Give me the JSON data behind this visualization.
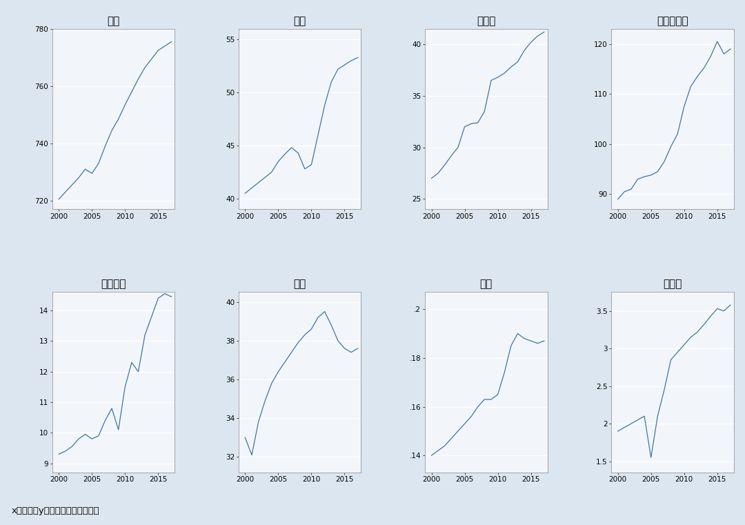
{
  "subplots": [
    {
      "title": "中国",
      "yticks": [
        720,
        740,
        760,
        780
      ],
      "ylim": [
        717,
        779
      ],
      "ytick_labels": [
        "720",
        "740",
        "760",
        "780"
      ],
      "data_x": [
        2000,
        2001,
        2002,
        2003,
        2004,
        2005,
        2006,
        2007,
        2008,
        2009,
        2010,
        2011,
        2012,
        2013,
        2014,
        2015,
        2016,
        2017
      ],
      "data_y": [
        720.5,
        723.0,
        725.5,
        728.0,
        731.0,
        729.5,
        733.0,
        739.0,
        744.5,
        748.5,
        753.5,
        758.0,
        762.5,
        766.5,
        769.5,
        772.5,
        774.0,
        775.5
      ]
    },
    {
      "title": "越南",
      "yticks": [
        40,
        45,
        50,
        55
      ],
      "ylim": [
        39.0,
        56.0
      ],
      "ytick_labels": [
        "40",
        "45",
        "50",
        "55"
      ],
      "data_x": [
        2000,
        2001,
        2002,
        2003,
        2004,
        2005,
        2006,
        2007,
        2008,
        2009,
        2010,
        2011,
        2012,
        2013,
        2014,
        2015,
        2016,
        2017
      ],
      "data_y": [
        40.5,
        41.0,
        41.5,
        42.0,
        42.5,
        43.5,
        44.2,
        44.8,
        44.3,
        42.8,
        43.2,
        46.0,
        48.8,
        51.0,
        52.2,
        52.6,
        53.0,
        53.3
      ]
    },
    {
      "title": "菲律宾",
      "yticks": [
        25,
        30,
        35,
        40
      ],
      "ylim": [
        24.0,
        41.5
      ],
      "ytick_labels": [
        "25",
        "30",
        "35",
        "40"
      ],
      "data_x": [
        2000,
        2001,
        2002,
        2003,
        2004,
        2005,
        2006,
        2007,
        2008,
        2009,
        2010,
        2011,
        2012,
        2013,
        2014,
        2015,
        2016,
        2017
      ],
      "data_y": [
        27.0,
        27.5,
        28.3,
        29.2,
        30.0,
        32.0,
        32.3,
        32.4,
        33.5,
        36.5,
        36.8,
        37.2,
        37.8,
        38.3,
        39.4,
        40.2,
        40.8,
        41.2
      ]
    },
    {
      "title": "印度尼西亚",
      "yticks": [
        90,
        100,
        110,
        120
      ],
      "ylim": [
        87,
        123
      ],
      "ytick_labels": [
        "90",
        "100",
        "110",
        "120"
      ],
      "data_x": [
        2000,
        2001,
        2002,
        2003,
        2004,
        2005,
        2006,
        2007,
        2008,
        2009,
        2010,
        2011,
        2012,
        2013,
        2014,
        2015,
        2016,
        2017
      ],
      "data_y": [
        89.0,
        90.5,
        91.0,
        93.0,
        93.5,
        93.8,
        94.5,
        96.5,
        99.5,
        102.0,
        107.5,
        111.5,
        113.5,
        115.2,
        117.5,
        120.5,
        118.0,
        119.0
      ]
    },
    {
      "title": "马来西亚",
      "yticks": [
        9,
        10,
        11,
        12,
        13,
        14
      ],
      "ylim": [
        8.7,
        14.6
      ],
      "ytick_labels": [
        "9",
        "10",
        "11",
        "12",
        "13",
        "14"
      ],
      "data_x": [
        2000,
        2001,
        2002,
        2003,
        2004,
        2005,
        2006,
        2007,
        2008,
        2009,
        2010,
        2011,
        2012,
        2013,
        2014,
        2015,
        2016,
        2017
      ],
      "data_y": [
        9.3,
        9.4,
        9.55,
        9.8,
        9.95,
        9.8,
        9.9,
        10.4,
        10.8,
        10.1,
        11.5,
        12.3,
        12.0,
        13.2,
        13.8,
        14.4,
        14.55,
        14.45
      ]
    },
    {
      "title": "泰国",
      "yticks": [
        32,
        34,
        36,
        38,
        40
      ],
      "ylim": [
        31.2,
        40.5
      ],
      "ytick_labels": [
        "32",
        "34",
        "36",
        "38",
        "40"
      ],
      "data_x": [
        2000,
        2001,
        2002,
        2003,
        2004,
        2005,
        2006,
        2007,
        2008,
        2009,
        2010,
        2011,
        2012,
        2013,
        2014,
        2015,
        2016,
        2017
      ],
      "data_y": [
        33.0,
        32.1,
        33.8,
        34.9,
        35.8,
        36.4,
        36.9,
        37.4,
        37.9,
        38.3,
        38.6,
        39.2,
        39.5,
        38.8,
        38.0,
        37.6,
        37.4,
        37.6
      ]
    },
    {
      "title": "文莱",
      "yticks": [
        0.14,
        0.16,
        0.18,
        0.2
      ],
      "ylim": [
        0.133,
        0.207
      ],
      "ytick_labels": [
        ".14",
        ".16",
        ".18",
        ".2"
      ],
      "data_x": [
        2000,
        2001,
        2002,
        2003,
        2004,
        2005,
        2006,
        2007,
        2008,
        2009,
        2010,
        2011,
        2012,
        2013,
        2014,
        2015,
        2016,
        2017
      ],
      "data_y": [
        0.14,
        0.142,
        0.144,
        0.147,
        0.15,
        0.153,
        0.156,
        0.16,
        0.163,
        0.163,
        0.165,
        0.174,
        0.185,
        0.19,
        0.188,
        0.187,
        0.186,
        0.187
      ]
    },
    {
      "title": "新加坡",
      "yticks": [
        1.5,
        2.0,
        2.5,
        3.0,
        3.5
      ],
      "ylim": [
        1.35,
        3.75
      ],
      "ytick_labels": [
        "1.5",
        "2",
        "2.5",
        "3",
        "3.5"
      ],
      "data_x": [
        2000,
        2001,
        2002,
        2003,
        2004,
        2005,
        2006,
        2007,
        2008,
        2009,
        2010,
        2011,
        2012,
        2013,
        2014,
        2015,
        2016,
        2017
      ],
      "data_y": [
        1.9,
        1.95,
        2.0,
        2.05,
        2.1,
        1.55,
        2.1,
        2.45,
        2.85,
        2.95,
        3.05,
        3.15,
        3.22,
        3.32,
        3.43,
        3.53,
        3.5,
        3.58
      ]
    }
  ],
  "line_color": "#4472a0",
  "bg_color": "#dce6f0",
  "plot_bg_color": "#f2f6fa",
  "xlabel_label": "x：年份；y：就业人口（百万人）",
  "xticks": [
    2000,
    2005,
    2010,
    2015
  ],
  "xlim": [
    1999.0,
    2017.5
  ]
}
